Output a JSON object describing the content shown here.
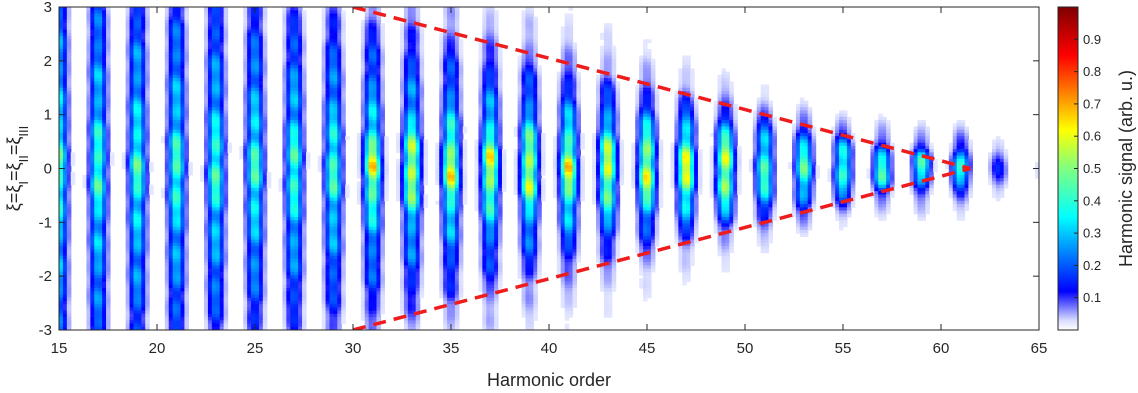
{
  "chart_data": {
    "type": "heatmap",
    "title": "",
    "xlabel": "Harmonic order",
    "ylabel": "ξ=ξ_I=ξ_II=ξ_III",
    "ylabel_parts": {
      "sym": "ξ",
      "eq": "=",
      "sub1": "I",
      "sub2": "II",
      "sub3": "III"
    },
    "xlim": [
      15,
      65
    ],
    "ylim": [
      -3,
      3
    ],
    "xticks": [
      15,
      20,
      25,
      30,
      35,
      40,
      45,
      50,
      55,
      60,
      65
    ],
    "yticks": [
      -3,
      -2,
      -1,
      0,
      1,
      2,
      3
    ],
    "colorbar": {
      "label": "Harmonic signal (arb. u.)",
      "range": [
        0,
        1
      ],
      "ticks": [
        0.1,
        0.2,
        0.3,
        0.4,
        0.5,
        0.6,
        0.7,
        0.8,
        0.9
      ],
      "colormap": "jet-white"
    },
    "harmonics": {
      "odd_orders": [
        15,
        17,
        19,
        21,
        23,
        25,
        27,
        29,
        31,
        33,
        35,
        37,
        39,
        41,
        43,
        45,
        47,
        49,
        51,
        53,
        55,
        57,
        59,
        61,
        63
      ],
      "cutoff_order": 61.5,
      "peak_signal": 1.0
    },
    "cutoff_lines": {
      "color": "#ee1c1c",
      "style": "dashed",
      "upper": {
        "x": [
          30,
          61.5
        ],
        "y": [
          3,
          0
        ]
      },
      "lower": {
        "x": [
          30,
          61.5
        ],
        "y": [
          -3,
          0
        ]
      }
    }
  }
}
